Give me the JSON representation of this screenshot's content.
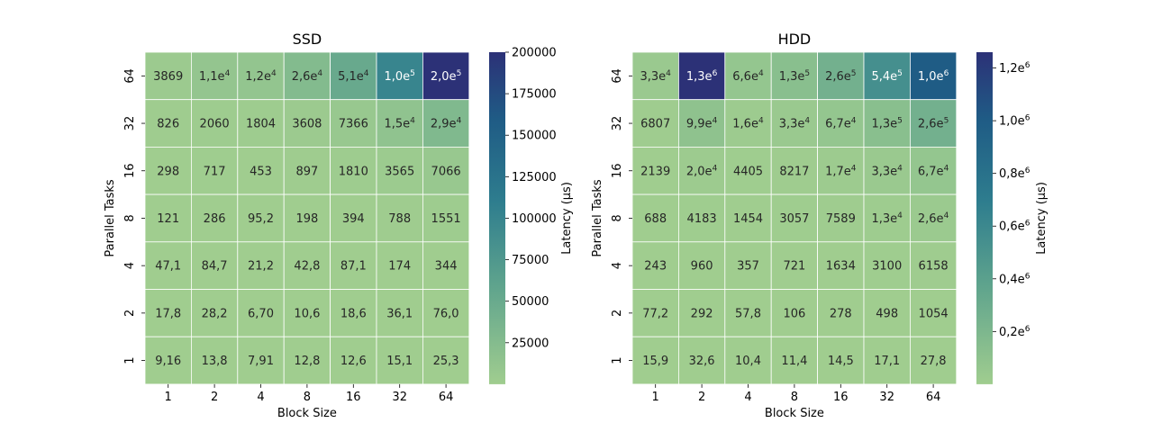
{
  "chart_data": [
    {
      "type": "heatmap",
      "title": "SSD",
      "xlabel": "Block Size",
      "ylabel": "Parallel Tasks",
      "x_categories": [
        "1",
        "2",
        "4",
        "8",
        "16",
        "32",
        "64"
      ],
      "y_categories": [
        "64",
        "32",
        "16",
        "8",
        "4",
        "2",
        "1"
      ],
      "values": [
        [
          3869,
          11000,
          12000,
          26000,
          51000,
          100000,
          200000
        ],
        [
          826,
          2060,
          1804,
          3608,
          7366,
          15000,
          29000
        ],
        [
          298,
          717,
          453,
          897,
          1810,
          3565,
          7066
        ],
        [
          121,
          286,
          95.2,
          198,
          394,
          788,
          1551
        ],
        [
          47.1,
          84.7,
          21.2,
          42.8,
          87.1,
          174,
          344
        ],
        [
          17.8,
          28.2,
          6.7,
          10.6,
          18.6,
          36.1,
          76.0
        ],
        [
          9.16,
          13.8,
          7.91,
          12.8,
          12.6,
          15.1,
          25.3
        ]
      ],
      "labels": [
        [
          {
            "m": "3869"
          },
          {
            "m": "1,1e",
            "e": "4"
          },
          {
            "m": "1,2e",
            "e": "4"
          },
          {
            "m": "2,6e",
            "e": "4"
          },
          {
            "m": "5,1e",
            "e": "4"
          },
          {
            "m": "1,0e",
            "e": "5"
          },
          {
            "m": "2,0e",
            "e": "5"
          }
        ],
        [
          {
            "m": "826"
          },
          {
            "m": "2060"
          },
          {
            "m": "1804"
          },
          {
            "m": "3608"
          },
          {
            "m": "7366"
          },
          {
            "m": "1,5e",
            "e": "4"
          },
          {
            "m": "2,9e",
            "e": "4"
          }
        ],
        [
          {
            "m": "298"
          },
          {
            "m": "717"
          },
          {
            "m": "453"
          },
          {
            "m": "897"
          },
          {
            "m": "1810"
          },
          {
            "m": "3565"
          },
          {
            "m": "7066"
          }
        ],
        [
          {
            "m": "121"
          },
          {
            "m": "286"
          },
          {
            "m": "95,2"
          },
          {
            "m": "198"
          },
          {
            "m": "394"
          },
          {
            "m": "788"
          },
          {
            "m": "1551"
          }
        ],
        [
          {
            "m": "47,1"
          },
          {
            "m": "84,7"
          },
          {
            "m": "21,2"
          },
          {
            "m": "42,8"
          },
          {
            "m": "87,1"
          },
          {
            "m": "174"
          },
          {
            "m": "344"
          }
        ],
        [
          {
            "m": "17,8"
          },
          {
            "m": "28,2"
          },
          {
            "m": "6,70"
          },
          {
            "m": "10,6"
          },
          {
            "m": "18,6"
          },
          {
            "m": "36,1"
          },
          {
            "m": "76,0"
          }
        ],
        [
          {
            "m": "9,16"
          },
          {
            "m": "13,8"
          },
          {
            "m": "7,91"
          },
          {
            "m": "12,8"
          },
          {
            "m": "12,6"
          },
          {
            "m": "15,1"
          },
          {
            "m": "25,3"
          }
        ]
      ],
      "colorbar": {
        "label": "Latency (µs)",
        "vmin": 6.7,
        "vmax": 200000,
        "ticks": [
          {
            "value": 25000,
            "m": "25000"
          },
          {
            "value": 50000,
            "m": "50000"
          },
          {
            "value": 75000,
            "m": "75000"
          },
          {
            "value": 100000,
            "m": "100000"
          },
          {
            "value": 125000,
            "m": "125000"
          },
          {
            "value": 150000,
            "m": "150000"
          },
          {
            "value": 175000,
            "m": "175000"
          },
          {
            "value": 200000,
            "m": "200000"
          }
        ]
      }
    },
    {
      "type": "heatmap",
      "title": "HDD",
      "xlabel": "Block Size",
      "ylabel": "Parallel Tasks",
      "x_categories": [
        "1",
        "2",
        "4",
        "8",
        "16",
        "32",
        "64"
      ],
      "y_categories": [
        "64",
        "32",
        "16",
        "8",
        "4",
        "2",
        "1"
      ],
      "values": [
        [
          33000,
          1300000,
          66000,
          130000,
          260000,
          540000,
          1000000
        ],
        [
          6807,
          99000,
          16000,
          33000,
          67000,
          130000,
          260000
        ],
        [
          2139,
          20000,
          4405,
          8217,
          17000,
          33000,
          67000
        ],
        [
          688,
          4183,
          1454,
          3057,
          7589,
          13000,
          26000
        ],
        [
          243,
          960,
          357,
          721,
          1634,
          3100,
          6158
        ],
        [
          77.2,
          292,
          57.8,
          106,
          278,
          498,
          1054
        ],
        [
          15.9,
          32.6,
          10.4,
          11.4,
          14.5,
          17.1,
          27.8
        ]
      ],
      "labels": [
        [
          {
            "m": "3,3e",
            "e": "4"
          },
          {
            "m": "1,3e",
            "e": "6"
          },
          {
            "m": "6,6e",
            "e": "4"
          },
          {
            "m": "1,3e",
            "e": "5"
          },
          {
            "m": "2,6e",
            "e": "5"
          },
          {
            "m": "5,4e",
            "e": "5"
          },
          {
            "m": "1,0e",
            "e": "6"
          }
        ],
        [
          {
            "m": "6807"
          },
          {
            "m": "9,9e",
            "e": "4"
          },
          {
            "m": "1,6e",
            "e": "4"
          },
          {
            "m": "3,3e",
            "e": "4"
          },
          {
            "m": "6,7e",
            "e": "4"
          },
          {
            "m": "1,3e",
            "e": "5"
          },
          {
            "m": "2,6e",
            "e": "5"
          }
        ],
        [
          {
            "m": "2139"
          },
          {
            "m": "2,0e",
            "e": "4"
          },
          {
            "m": "4405"
          },
          {
            "m": "8217"
          },
          {
            "m": "1,7e",
            "e": "4"
          },
          {
            "m": "3,3e",
            "e": "4"
          },
          {
            "m": "6,7e",
            "e": "4"
          }
        ],
        [
          {
            "m": "688"
          },
          {
            "m": "4183"
          },
          {
            "m": "1454"
          },
          {
            "m": "3057"
          },
          {
            "m": "7589"
          },
          {
            "m": "1,3e",
            "e": "4"
          },
          {
            "m": "2,6e",
            "e": "4"
          }
        ],
        [
          {
            "m": "243"
          },
          {
            "m": "960"
          },
          {
            "m": "357"
          },
          {
            "m": "721"
          },
          {
            "m": "1634"
          },
          {
            "m": "3100"
          },
          {
            "m": "6158"
          }
        ],
        [
          {
            "m": "77,2"
          },
          {
            "m": "292"
          },
          {
            "m": "57,8"
          },
          {
            "m": "106"
          },
          {
            "m": "278"
          },
          {
            "m": "498"
          },
          {
            "m": "1054"
          }
        ],
        [
          {
            "m": "15,9"
          },
          {
            "m": "32,6"
          },
          {
            "m": "10,4"
          },
          {
            "m": "11,4"
          },
          {
            "m": "14,5"
          },
          {
            "m": "17,1"
          },
          {
            "m": "27,8"
          }
        ]
      ],
      "colorbar": {
        "label": "Latency (µs)",
        "vmin": 10.4,
        "vmax": 1260000,
        "ticks": [
          {
            "value": 200000,
            "m": "0,2e",
            "e": "6"
          },
          {
            "value": 400000,
            "m": "0,4e",
            "e": "6"
          },
          {
            "value": 600000,
            "m": "0,6e",
            "e": "6"
          },
          {
            "value": 800000,
            "m": "0,8e",
            "e": "6"
          },
          {
            "value": 1000000,
            "m": "1,0e",
            "e": "6"
          },
          {
            "value": 1200000,
            "m": "1,2e",
            "e": "6"
          }
        ]
      }
    }
  ],
  "colors": {
    "cmap_low": "#a0cd8f",
    "cmap_mid": "#5ea38d",
    "cmap_mid2": "#2e7d8e",
    "cmap_mid3": "#1f5b85",
    "cmap_high": "#2c3177",
    "cell_border": "#ffffff",
    "text_dark": "#262626",
    "text_light": "#ffffff"
  }
}
